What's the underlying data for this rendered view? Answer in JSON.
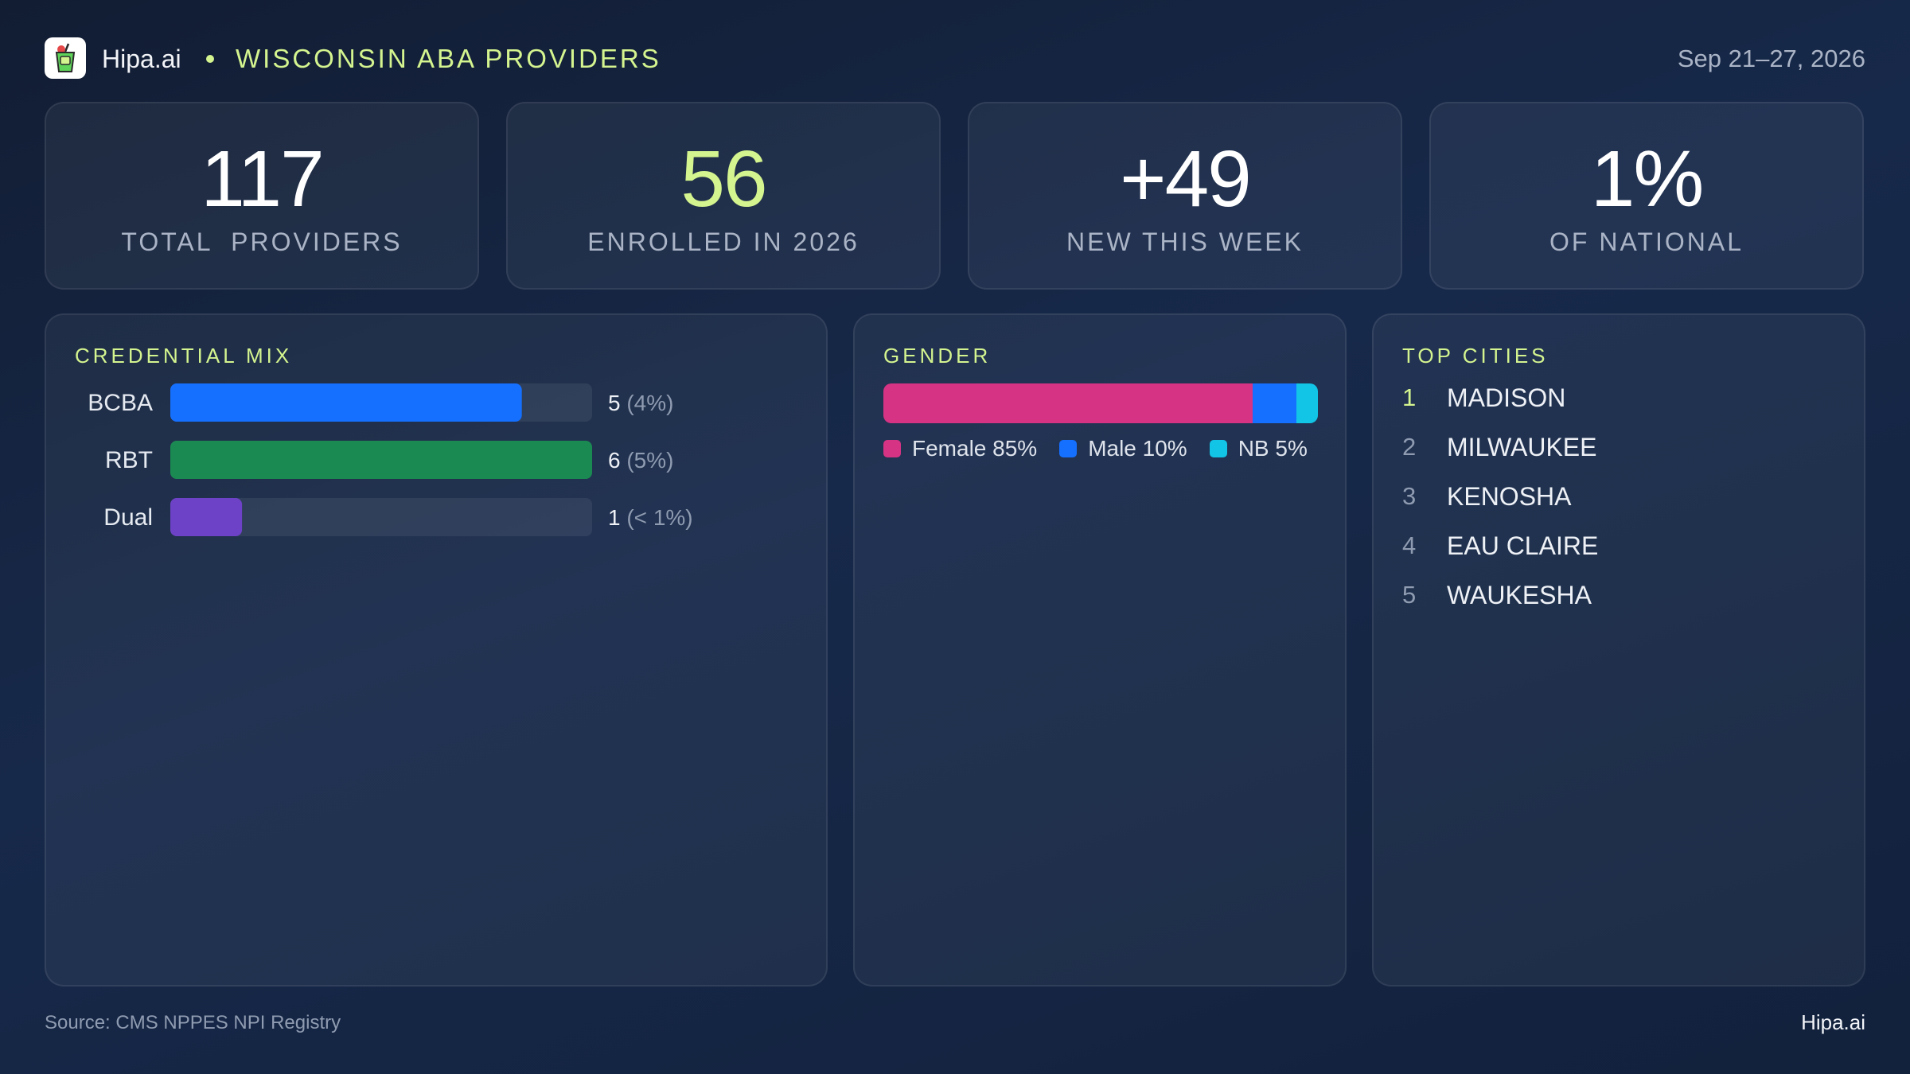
{
  "header": {
    "brand": "Hipa.ai",
    "title": "WISCONSIN ABA PROVIDERS",
    "date_range": "Sep 21–27, 2026"
  },
  "kpis": [
    {
      "value": "117",
      "label": "TOTAL  PROVIDERS"
    },
    {
      "value": "56",
      "label": "ENROLLED IN 2026"
    },
    {
      "value": "+49",
      "label": "NEW THIS WEEK"
    },
    {
      "value": "1%",
      "label": "OF NATIONAL"
    }
  ],
  "credential_panel": {
    "title": "CREDENTIAL MIX"
  },
  "gender_panel": {
    "title": "GENDER"
  },
  "cities": {
    "title": "TOP CITIES",
    "items": [
      {
        "rank": "1",
        "name": "MADISON"
      },
      {
        "rank": "2",
        "name": "MILWAUKEE"
      },
      {
        "rank": "3",
        "name": "KENOSHA"
      },
      {
        "rank": "4",
        "name": "EAU CLAIRE"
      },
      {
        "rank": "5",
        "name": "WAUKESHA"
      }
    ]
  },
  "footer": {
    "source": "Source: CMS NPPES NPI Registry",
    "brand": "Hipa.ai"
  },
  "colors": {
    "accent": "#d4f48f",
    "bcba": "#1570ff",
    "rbt": "#1b8a52",
    "dual": "#6d42c6",
    "female": "#d63384",
    "male": "#1570ff",
    "nb": "#12c4e6"
  },
  "chart_data": [
    {
      "type": "bar",
      "title": "CREDENTIAL MIX",
      "orientation": "horizontal",
      "categories": [
        "BCBA",
        "RBT",
        "Dual"
      ],
      "values": [
        5,
        6,
        1
      ],
      "value_labels": [
        "5",
        "6",
        "1"
      ],
      "percent_labels": [
        "(4%)",
        "(5%)",
        "(< 1%)"
      ],
      "xlim": [
        0,
        6
      ],
      "colors": [
        "#1570ff",
        "#1b8a52",
        "#6d42c6"
      ]
    },
    {
      "type": "bar",
      "title": "GENDER",
      "orientation": "horizontal",
      "stacked": true,
      "series": [
        {
          "name": "Female",
          "value": 85,
          "label": "Female 85%",
          "color": "#d63384"
        },
        {
          "name": "Male",
          "value": 10,
          "label": "Male 10%",
          "color": "#1570ff"
        },
        {
          "name": "NB",
          "value": 5,
          "label": "NB 5%",
          "color": "#12c4e6"
        }
      ]
    }
  ]
}
